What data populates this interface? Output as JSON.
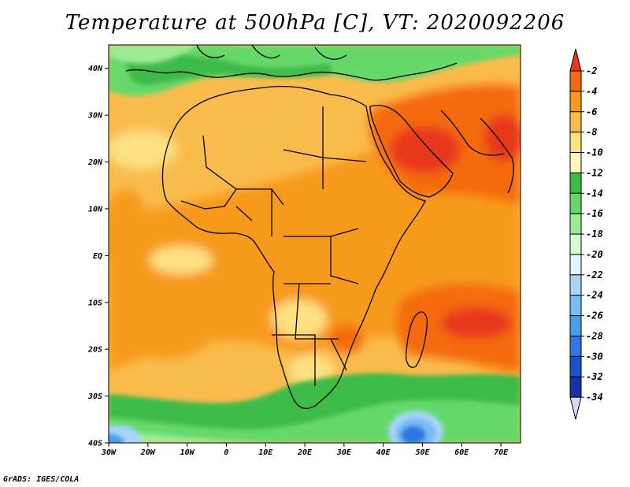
{
  "title": "Temperature at 500hPa [C], VT: 2020092206",
  "credit": "GrADS: IGES/COLA",
  "map": {
    "lat_labels": [
      "40N",
      "30N",
      "20N",
      "10N",
      "EQ",
      "10S",
      "20S",
      "30S",
      "40S"
    ],
    "lon_labels": [
      "30W",
      "20W",
      "10W",
      "0",
      "10E",
      "20E",
      "30E",
      "40E",
      "50E",
      "60E",
      "70E"
    ]
  },
  "colorbar": {
    "labels": [
      "-2",
      "-4",
      "-6",
      "-8",
      "-10",
      "-12",
      "-14",
      "-16",
      "-18",
      "-20",
      "-22",
      "-24",
      "-26",
      "-28",
      "-30",
      "-32",
      "-34"
    ],
    "colors": [
      "#e8391e",
      "#f46a0e",
      "#f79a1f",
      "#f9bb4c",
      "#fde082",
      "#fff8b8",
      "#3dbb48",
      "#66d86a",
      "#9bec96",
      "#d6f9cf",
      "#e1f5ff",
      "#a7d6f8",
      "#78bcf4",
      "#4b9eee",
      "#2f78e2",
      "#1c52c8",
      "#1634a6",
      "#0c1a78"
    ]
  },
  "chart_data": {
    "type": "heatmap",
    "title": "Temperature at 500hPa [C], VT: 2020092206",
    "variable": "Temperature at 500hPa",
    "units": "C",
    "valid_time": "2020092206",
    "lon_range": [
      -30,
      75
    ],
    "lat_range": [
      -40,
      45
    ],
    "color_levels": [
      -2,
      -4,
      -6,
      -8,
      -10,
      -12,
      -14,
      -16,
      -18,
      -20,
      -22,
      -24,
      -26,
      -28,
      -30,
      -32,
      -34
    ]
  }
}
